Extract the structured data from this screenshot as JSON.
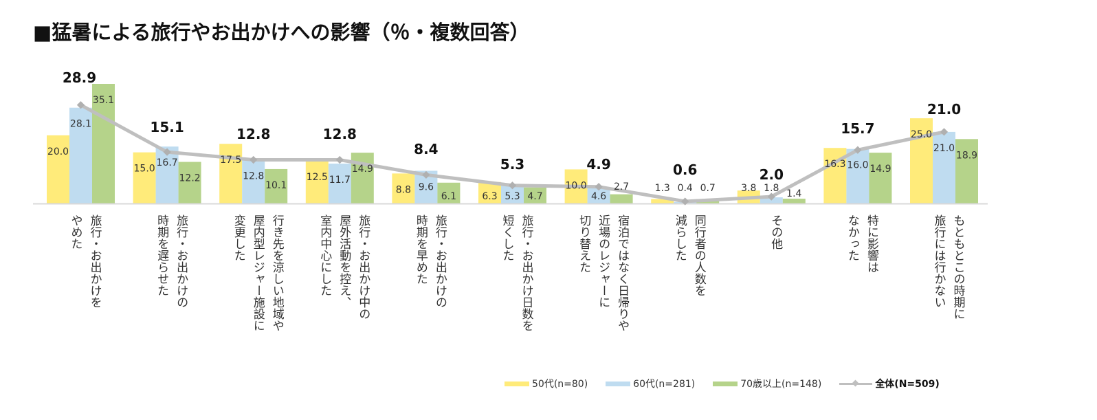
{
  "title": "■猛暑による旅行やお出かけへの影響（％・複数回答）",
  "chart_data": {
    "type": "bar",
    "title": "■猛暑による旅行やお出かけへの影響（％・複数回答）",
    "xlabel": "",
    "ylabel": "",
    "ylim": [
      0,
      36
    ],
    "grid": false,
    "legend_position": "bottom-right",
    "categories": [
      "旅行・お出かけを\nやめた",
      "旅行・お出かけの\n時期を遅らせた",
      "行き先を涼しい地域や\n屋内型レジャー施設に\n変更した",
      "旅行・お出かけ中の\n屋外活動を控え、\n室内中心にした",
      "旅行・お出かけの\n時期を早めた",
      "旅行・お出かけ日数を\n短くした",
      "宿泊ではなく日帰りや\n近場のレジャーに\n切り替えた",
      "同行者の人数を\n減らした",
      "その他",
      "特に影響は\nなかった",
      "もともとこの時期に\n旅行には行かない"
    ],
    "series": [
      {
        "name": "50代(n=80)",
        "kind": "bar",
        "color": "#ffeb7a",
        "values": [
          20.0,
          15.0,
          17.5,
          12.5,
          8.8,
          6.3,
          10.0,
          1.3,
          3.8,
          16.3,
          25.0
        ]
      },
      {
        "name": "60代(n=281)",
        "kind": "bar",
        "color": "#bfdcf0",
        "values": [
          28.1,
          16.7,
          12.8,
          11.7,
          9.6,
          5.3,
          4.6,
          0.4,
          1.8,
          16.0,
          21.0
        ]
      },
      {
        "name": "70歳以上(n=148)",
        "kind": "bar",
        "color": "#b5d38a",
        "values": [
          35.1,
          12.2,
          10.1,
          14.9,
          6.1,
          4.7,
          2.7,
          0.7,
          1.4,
          14.9,
          18.9
        ]
      },
      {
        "name": "全体(N=509)",
        "kind": "line",
        "color": "#bfbfbf",
        "values": [
          28.9,
          15.1,
          12.8,
          12.8,
          8.4,
          5.3,
          4.9,
          0.6,
          2.0,
          15.7,
          21.0
        ]
      }
    ]
  }
}
